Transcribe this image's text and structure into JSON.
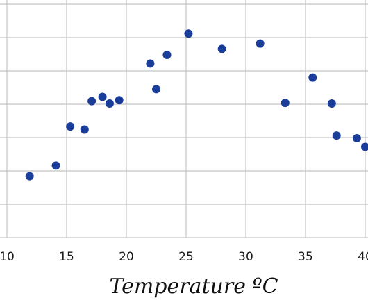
{
  "chart_data": {
    "type": "scatter",
    "title": "",
    "xlabel": "Temperature ºC",
    "ylabel": "",
    "xlim": [
      10,
      40
    ],
    "ylim": [
      0,
      7
    ],
    "grid": true,
    "x_ticks": [
      "10",
      "15",
      "20",
      "25",
      "30",
      "35",
      "40"
    ],
    "series": [
      {
        "color": "#1a3d9a",
        "points": [
          {
            "x": 11.9,
            "y": 1.84
          },
          {
            "x": 14.1,
            "y": 2.16
          },
          {
            "x": 15.3,
            "y": 3.33
          },
          {
            "x": 16.5,
            "y": 3.24
          },
          {
            "x": 17.1,
            "y": 4.09
          },
          {
            "x": 18.0,
            "y": 4.22
          },
          {
            "x": 18.6,
            "y": 4.02
          },
          {
            "x": 19.4,
            "y": 4.12
          },
          {
            "x": 22.0,
            "y": 5.22
          },
          {
            "x": 22.5,
            "y": 4.45
          },
          {
            "x": 23.4,
            "y": 5.48
          },
          {
            "x": 25.2,
            "y": 6.12
          },
          {
            "x": 28.0,
            "y": 5.66
          },
          {
            "x": 31.2,
            "y": 5.82
          },
          {
            "x": 33.3,
            "y": 4.04
          },
          {
            "x": 35.6,
            "y": 4.8
          },
          {
            "x": 37.2,
            "y": 4.02
          },
          {
            "x": 37.6,
            "y": 3.06
          },
          {
            "x": 39.3,
            "y": 2.98
          },
          {
            "x": 40.0,
            "y": 2.72
          }
        ]
      }
    ]
  }
}
